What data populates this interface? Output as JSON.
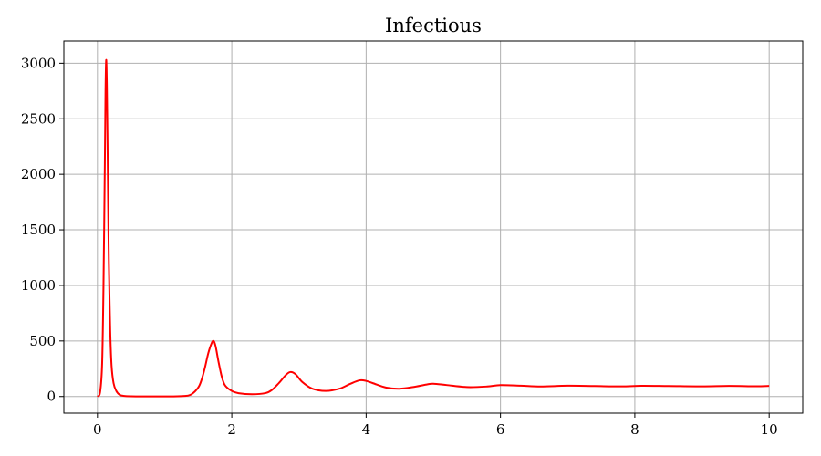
{
  "chart_data": {
    "type": "line",
    "title": "Infectious",
    "xlabel": "",
    "ylabel": "",
    "xlim": [
      -0.5,
      10.5
    ],
    "ylim": [
      -150,
      3200
    ],
    "xticks": [
      0,
      2,
      4,
      6,
      8,
      10
    ],
    "yticks": [
      0,
      500,
      1000,
      1500,
      2000,
      2500,
      3000
    ],
    "grid": true,
    "series": [
      {
        "color": "#ff0000",
        "x": [
          0,
          0.04,
          0.07,
          0.09,
          0.11,
          0.12,
          0.13,
          0.14,
          0.15,
          0.16,
          0.17,
          0.19,
          0.21,
          0.24,
          0.28,
          0.33,
          0.4,
          0.5,
          0.7,
          0.9,
          1.1,
          1.3,
          1.4,
          1.5,
          1.55,
          1.6,
          1.65,
          1.7,
          1.73,
          1.76,
          1.8,
          1.85,
          1.9,
          2.0,
          2.1,
          2.3,
          2.5,
          2.6,
          2.7,
          2.8,
          2.87,
          2.95,
          3.05,
          3.2,
          3.4,
          3.6,
          3.75,
          3.9,
          4.0,
          4.1,
          4.3,
          4.5,
          4.7,
          4.9,
          5.0,
          5.2,
          5.5,
          5.8,
          6.0,
          6.3,
          6.6,
          7.0,
          7.4,
          7.8,
          8.1,
          8.5,
          9.0,
          9.4,
          9.8,
          10.0
        ],
        "y": [
          0,
          40,
          300,
          1000,
          2100,
          2750,
          3030,
          2800,
          2300,
          1700,
          1200,
          600,
          280,
          120,
          50,
          15,
          5,
          2,
          1,
          1,
          1,
          5,
          20,
          80,
          150,
          260,
          390,
          480,
          500,
          450,
          320,
          180,
          100,
          50,
          30,
          20,
          30,
          60,
          120,
          190,
          220,
          200,
          130,
          70,
          50,
          70,
          110,
          145,
          140,
          120,
          80,
          70,
          85,
          108,
          115,
          103,
          85,
          90,
          102,
          97,
          90,
          97,
          94,
          91,
          96,
          94,
          91,
          95,
          92,
          95
        ]
      }
    ]
  }
}
